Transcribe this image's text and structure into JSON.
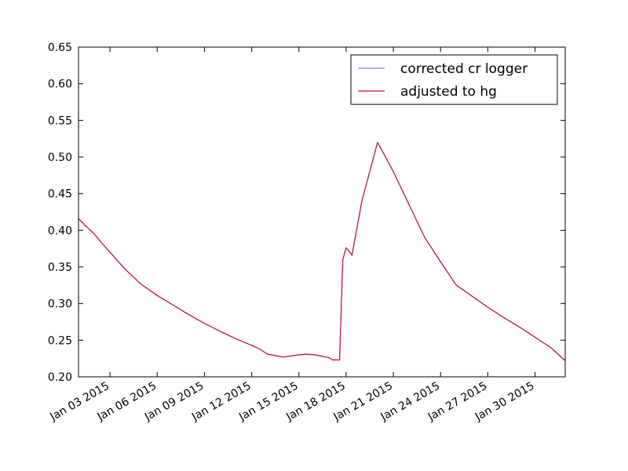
{
  "chart_data": {
    "type": "line",
    "title": "",
    "xlabel": "",
    "ylabel": "",
    "ylim": [
      0.2,
      0.65
    ],
    "xlim": [
      "2015-01-01",
      "2015-01-31T22:00"
    ],
    "y_ticks": [
      0.2,
      0.25,
      0.3,
      0.35,
      0.4,
      0.45,
      0.5,
      0.55,
      0.6,
      0.65
    ],
    "y_tick_labels": [
      "0.20",
      "0.25",
      "0.30",
      "0.35",
      "0.40",
      "0.45",
      "0.50",
      "0.55",
      "0.60",
      "0.65"
    ],
    "x_ticks": [
      "2015-01-03",
      "2015-01-06",
      "2015-01-09",
      "2015-01-12",
      "2015-01-15",
      "2015-01-18",
      "2015-01-21",
      "2015-01-24",
      "2015-01-27",
      "2015-01-30"
    ],
    "x_tick_labels": [
      "Jan 03 2015",
      "Jan 06 2015",
      "Jan 09 2015",
      "Jan 12 2015",
      "Jan 15 2015",
      "Jan 18 2015",
      "Jan 21 2015",
      "Jan 24 2015",
      "Jan 27 2015",
      "Jan 30 2015"
    ],
    "grid": false,
    "legend": {
      "position": "top-right"
    },
    "series": [
      {
        "name": "corrected cr logger",
        "color": "#8080ff",
        "x": [
          "2015-01-01T00:00",
          "2015-01-01T12:00",
          "2015-01-02T00:00",
          "2015-01-02T12:00",
          "2015-01-03T00:00",
          "2015-01-04T00:00",
          "2015-01-05T00:00",
          "2015-01-06T00:00",
          "2015-01-07T00:00",
          "2015-01-08T00:00",
          "2015-01-09T00:00",
          "2015-01-10T00:00",
          "2015-01-11T00:00",
          "2015-01-12T00:00",
          "2015-01-12T12:00",
          "2015-01-13T00:00",
          "2015-01-14T00:00",
          "2015-01-15T00:00",
          "2015-01-15T12:00",
          "2015-01-16T00:00",
          "2015-01-16T12:00",
          "2015-01-16T22:00",
          "2015-01-17T03:00",
          "2015-01-17T08:00",
          "2015-01-17T14:00",
          "2015-01-17T19:00",
          "2015-01-18T00:00",
          "2015-01-18T04:00",
          "2015-01-18T09:00",
          "2015-01-19T00:00",
          "2015-01-20T00:00",
          "2015-01-21T00:00",
          "2015-01-22T00:00",
          "2015-01-23T00:00",
          "2015-01-24T00:00",
          "2015-01-25T00:00",
          "2015-01-26T00:00",
          "2015-01-27T00:00",
          "2015-01-28T00:00",
          "2015-01-29T00:00",
          "2015-01-30T00:00",
          "2015-01-31T00:00",
          "2015-01-31T22:00"
        ],
        "y": [
          0.416,
          0.405,
          0.395,
          0.382,
          0.37,
          0.346,
          0.326,
          0.311,
          0.298,
          0.285,
          0.273,
          0.262,
          0.252,
          0.243,
          0.238,
          0.231,
          0.227,
          0.23,
          0.231,
          0.23,
          0.228,
          0.226,
          0.223,
          0.223,
          0.223,
          0.36,
          0.376,
          0.372,
          0.366,
          0.44,
          0.52,
          0.48,
          0.435,
          0.39,
          0.357,
          0.325,
          0.31,
          0.295,
          0.281,
          0.268,
          0.254,
          0.24,
          0.222
        ]
      },
      {
        "name": "adjusted to hg",
        "color": "#c0143c",
        "x": [
          "2015-01-01T00:00",
          "2015-01-01T12:00",
          "2015-01-02T00:00",
          "2015-01-02T12:00",
          "2015-01-03T00:00",
          "2015-01-04T00:00",
          "2015-01-05T00:00",
          "2015-01-06T00:00",
          "2015-01-07T00:00",
          "2015-01-08T00:00",
          "2015-01-09T00:00",
          "2015-01-10T00:00",
          "2015-01-11T00:00",
          "2015-01-12T00:00",
          "2015-01-12T12:00",
          "2015-01-13T00:00",
          "2015-01-14T00:00",
          "2015-01-15T00:00",
          "2015-01-15T12:00",
          "2015-01-16T00:00",
          "2015-01-16T12:00",
          "2015-01-16T22:00",
          "2015-01-17T03:00",
          "2015-01-17T08:00",
          "2015-01-17T14:00",
          "2015-01-17T19:00",
          "2015-01-18T00:00",
          "2015-01-18T04:00",
          "2015-01-18T09:00",
          "2015-01-19T00:00",
          "2015-01-20T00:00",
          "2015-01-21T00:00",
          "2015-01-22T00:00",
          "2015-01-23T00:00",
          "2015-01-24T00:00",
          "2015-01-25T00:00",
          "2015-01-26T00:00",
          "2015-01-27T00:00",
          "2015-01-28T00:00",
          "2015-01-29T00:00",
          "2015-01-30T00:00",
          "2015-01-31T00:00",
          "2015-01-31T22:00"
        ],
        "y": [
          0.416,
          0.405,
          0.395,
          0.382,
          0.37,
          0.346,
          0.326,
          0.311,
          0.298,
          0.285,
          0.273,
          0.262,
          0.252,
          0.243,
          0.238,
          0.231,
          0.227,
          0.23,
          0.231,
          0.23,
          0.228,
          0.226,
          0.223,
          0.223,
          0.223,
          0.36,
          0.376,
          0.372,
          0.366,
          0.44,
          0.52,
          0.48,
          0.435,
          0.39,
          0.357,
          0.325,
          0.31,
          0.295,
          0.281,
          0.268,
          0.254,
          0.24,
          0.222
        ]
      }
    ]
  }
}
